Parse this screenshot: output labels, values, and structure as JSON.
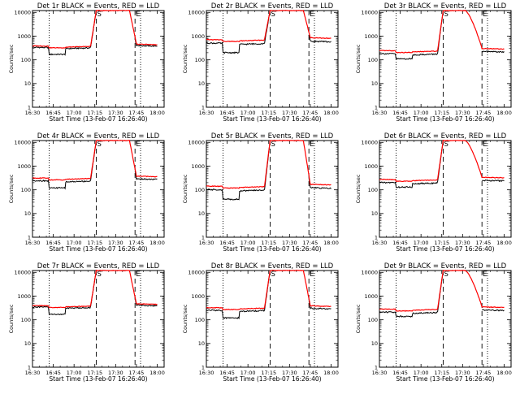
{
  "chart_data": {
    "type": "line",
    "layout": "3x3 grid of time-series panels",
    "legend_text": "BLACK = Events, RED = LLD",
    "xlabel": "Start Time (13-Feb-07 16:26:40)",
    "ylabel": "Counts/sec",
    "x_tick_labels": [
      "16:30",
      "16:45",
      "17:00",
      "17:15",
      "17:30",
      "17:45",
      "18:00"
    ],
    "x_tick_minutes": [
      0,
      15,
      30,
      45,
      60,
      75,
      90
    ],
    "xlim_minutes": [
      0,
      95
    ],
    "y_scale": "log",
    "ylim": [
      1,
      12000
    ],
    "y_tick_values": [
      1,
      10,
      100,
      1000,
      10000
    ],
    "y_tick_labels": [
      "1",
      "10",
      "100",
      "1000",
      "10000"
    ],
    "markers": [
      {
        "minute": 12,
        "style": "dotted"
      },
      {
        "minute": 46,
        "style": "dashed",
        "label": "S"
      },
      {
        "minute": 74,
        "style": "dashed",
        "label": "E"
      },
      {
        "minute": 78,
        "style": "dotted"
      }
    ],
    "series_colors": {
      "events": "#000000",
      "lld": "#ff0000"
    },
    "panels": [
      {
        "title": "Det 1r BLACK = Events, RED = LLD",
        "base_events": 330,
        "base_lld": 380,
        "dip": 170,
        "peak": 12000,
        "decay": "fast"
      },
      {
        "title": "Det 2r BLACK = Events, RED = LLD",
        "base_events": 500,
        "base_lld": 700,
        "dip": 200,
        "peak": 12000,
        "decay": "fast"
      },
      {
        "title": "Det 3r BLACK = Events, RED = LLD",
        "base_events": 180,
        "base_lld": 240,
        "dip": 110,
        "peak": 12000,
        "decay": "slow"
      },
      {
        "title": "Det 4r BLACK = Events, RED = LLD",
        "base_events": 240,
        "base_lld": 310,
        "dip": 120,
        "peak": 12000,
        "decay": "fast"
      },
      {
        "title": "Det 5r BLACK = Events, RED = LLD",
        "base_events": 100,
        "base_lld": 140,
        "dip": 40,
        "peak": 12000,
        "decay": "fast"
      },
      {
        "title": "Det 6r BLACK = Events, RED = LLD",
        "base_events": 200,
        "base_lld": 270,
        "dip": 130,
        "peak": 12000,
        "decay": "slow"
      },
      {
        "title": "Det 7r BLACK = Events, RED = LLD",
        "base_events": 340,
        "base_lld": 390,
        "dip": 170,
        "peak": 12000,
        "decay": "fast"
      },
      {
        "title": "Det 8r BLACK = Events, RED = LLD",
        "base_events": 250,
        "base_lld": 320,
        "dip": 120,
        "peak": 12000,
        "decay": "fast"
      },
      {
        "title": "Det 9r BLACK = Events, RED = LLD",
        "base_events": 210,
        "base_lld": 280,
        "dip": 140,
        "peak": 12000,
        "decay": "slow"
      }
    ]
  }
}
